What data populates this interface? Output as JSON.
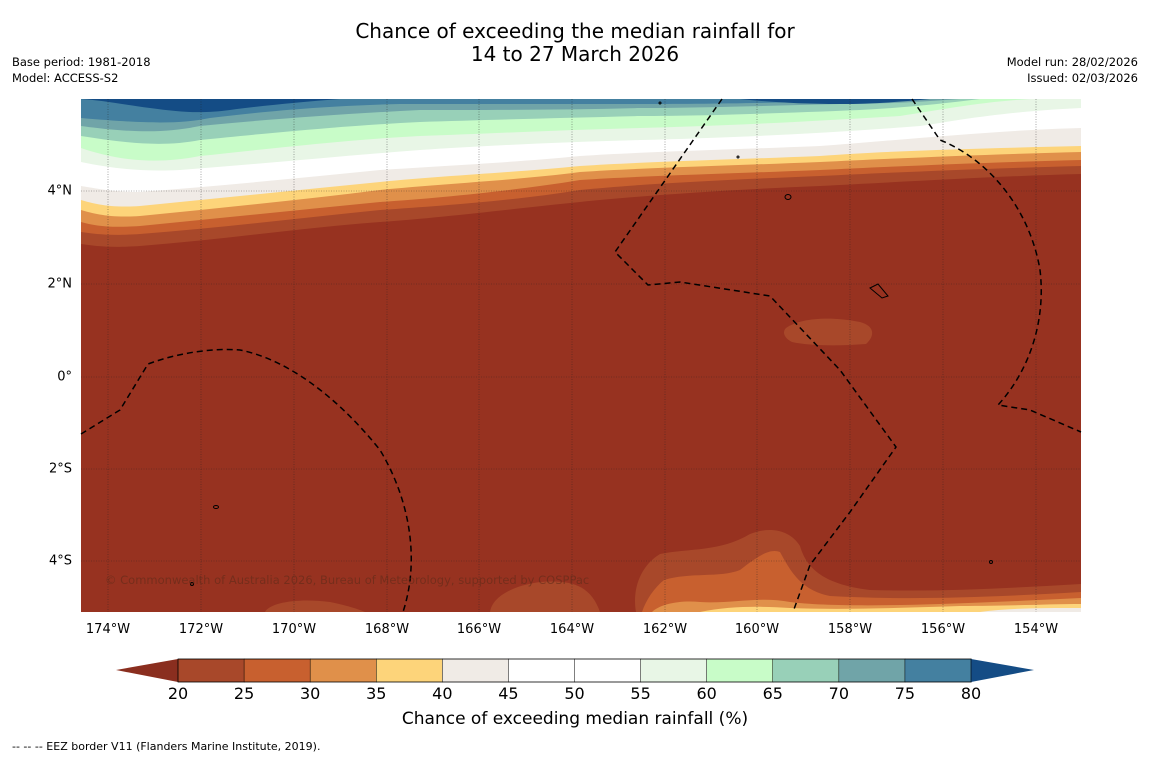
{
  "title": {
    "line1": "Chance of exceeding the median rainfall for",
    "line2": "14 to 27 March 2026"
  },
  "meta_left": {
    "base_period": "Base period: 1981-2018",
    "model": "Model: ACCESS-S2"
  },
  "meta_right": {
    "model_run": "Model run: 28/02/2026",
    "issued": "Issued: 02/03/2026"
  },
  "map": {
    "lon_labels": [
      "174°W",
      "172°W",
      "170°W",
      "168°W",
      "166°W",
      "164°W",
      "162°W",
      "160°W",
      "158°W",
      "156°W",
      "154°W"
    ],
    "lat_labels": [
      "4°N",
      "2°N",
      "0°",
      "2°S",
      "4°S"
    ],
    "copyright": "© Commonwealth of Australia 2026, Bureau of Meteorology, supported by COSPPac"
  },
  "colorbar": {
    "ticks": [
      "20",
      "25",
      "30",
      "35",
      "40",
      "45",
      "50",
      "55",
      "60",
      "65",
      "70",
      "75",
      "80"
    ],
    "under_color": "#8a2e1f",
    "over_color": "#144c85",
    "colors": [
      "#a8482a",
      "#c8602f",
      "#e0904a",
      "#fdd47a",
      "#f0ebe6",
      "#ffffff",
      "#ffffff",
      "#e8f6e6",
      "#c8fcc8",
      "#98d0b8",
      "#70a4a8",
      "#4480a0"
    ],
    "title": "Chance of exceeding median rainfall (%)"
  },
  "legend": "--  --  -- EEZ border V11 (Flanders Marine Institute, 2019).",
  "palette": {
    "base": "#973220",
    "band25": "#a8482a",
    "band30": "#c8602f",
    "band35": "#e0904a",
    "band40": "#fdd47a",
    "band45": "#f0ebe6",
    "band60": "#e8f6e6",
    "band65": "#c8fcc8",
    "band70": "#98d0b8",
    "band75": "#70a4a8",
    "band80": "#4480a0",
    "deep": "#144c85"
  }
}
